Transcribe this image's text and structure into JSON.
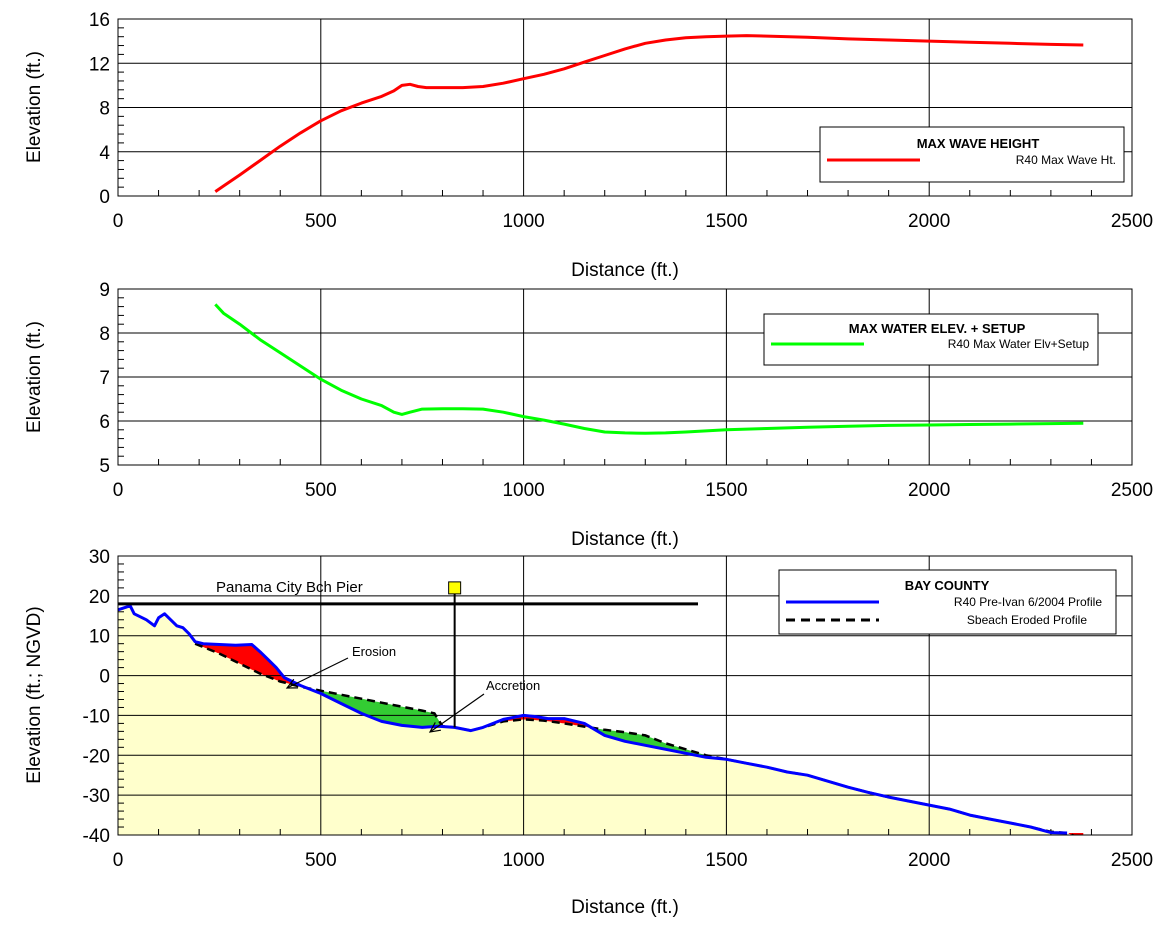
{
  "chart_data": [
    {
      "type": "line",
      "xlabel": "Distance (ft.)",
      "ylabel": "Elevation (ft.)",
      "xlim": [
        0,
        2500
      ],
      "ylim": [
        0,
        16
      ],
      "xticks": [
        "0",
        "500",
        "1000",
        "1500",
        "2000",
        "2500"
      ],
      "yticks": [
        "0",
        "4",
        "8",
        "12",
        "16"
      ],
      "grid": true,
      "legend": {
        "title": "MAX WAVE HEIGHT",
        "placement": "right"
      },
      "series": [
        {
          "name": "R40 Max Wave Ht.",
          "color": "#ff0000",
          "x": [
            240,
            260,
            300,
            350,
            400,
            450,
            500,
            550,
            600,
            650,
            680,
            700,
            720,
            740,
            760,
            800,
            850,
            900,
            950,
            1000,
            1050,
            1100,
            1150,
            1200,
            1250,
            1300,
            1350,
            1400,
            1450,
            1500,
            1550,
            1600,
            1700,
            1800,
            1900,
            2000,
            2100,
            2200,
            2300,
            2380
          ],
          "y": [
            0.4,
            0.9,
            1.9,
            3.2,
            4.5,
            5.7,
            6.8,
            7.7,
            8.4,
            9.0,
            9.5,
            10.0,
            10.1,
            9.9,
            9.8,
            9.8,
            9.8,
            9.9,
            10.2,
            10.6,
            11.0,
            11.5,
            12.1,
            12.7,
            13.3,
            13.8,
            14.1,
            14.3,
            14.4,
            14.45,
            14.5,
            14.45,
            14.35,
            14.2,
            14.1,
            14.0,
            13.9,
            13.8,
            13.7,
            13.65
          ]
        }
      ]
    },
    {
      "type": "line",
      "xlabel": "Distance (ft.)",
      "ylabel": "Elevation (ft.)",
      "xlim": [
        0,
        2500
      ],
      "ylim": [
        5,
        9
      ],
      "xticks": [
        "0",
        "500",
        "1000",
        "1500",
        "2000",
        "2500"
      ],
      "yticks": [
        "5",
        "6",
        "7",
        "8",
        "9"
      ],
      "grid": true,
      "legend": {
        "title": "MAX WATER ELEV. + SETUP",
        "placement": "top-right"
      },
      "series": [
        {
          "name": "R40 Max Water Elv+Setup",
          "color": "#00ff00",
          "x": [
            240,
            260,
            300,
            350,
            400,
            450,
            500,
            550,
            600,
            650,
            680,
            700,
            720,
            750,
            800,
            850,
            900,
            950,
            1000,
            1050,
            1100,
            1150,
            1200,
            1250,
            1300,
            1350,
            1400,
            1500,
            1600,
            1700,
            1800,
            1900,
            2000,
            2100,
            2200,
            2300,
            2380
          ],
          "y": [
            8.65,
            8.45,
            8.2,
            7.85,
            7.55,
            7.25,
            6.95,
            6.7,
            6.5,
            6.35,
            6.2,
            6.15,
            6.2,
            6.27,
            6.28,
            6.28,
            6.27,
            6.2,
            6.1,
            6.02,
            5.93,
            5.83,
            5.75,
            5.73,
            5.72,
            5.73,
            5.75,
            5.8,
            5.83,
            5.86,
            5.88,
            5.9,
            5.91,
            5.92,
            5.93,
            5.94,
            5.95
          ]
        }
      ]
    },
    {
      "type": "line",
      "xlabel": "Distance (ft.)",
      "ylabel": "Elevation (ft.; NGVD)",
      "xlim": [
        0,
        2500
      ],
      "ylim": [
        -40,
        30
      ],
      "xticks": [
        "0",
        "500",
        "1000",
        "1500",
        "2000",
        "2500"
      ],
      "yticks": [
        "-40",
        "-30",
        "-20",
        "-10",
        "0",
        "10",
        "20",
        "30"
      ],
      "grid": true,
      "legend": {
        "title": "BAY COUNTY",
        "placement": "top-right"
      },
      "series": [
        {
          "name": "R40 Pre-Ivan 6/2004 Profile",
          "color": "#0000ff",
          "x": [
            0,
            15,
            30,
            40,
            50,
            70,
            90,
            100,
            115,
            130,
            145,
            160,
            175,
            190,
            210,
            250,
            290,
            330,
            350,
            370,
            390,
            410,
            420,
            450,
            500,
            550,
            600,
            650,
            700,
            750,
            790,
            830,
            870,
            900,
            950,
            1000,
            1030,
            1060,
            1100,
            1150,
            1200,
            1250,
            1300,
            1350,
            1400,
            1450,
            1500,
            1550,
            1600,
            1650,
            1700,
            1750,
            1800,
            1850,
            1900,
            1950,
            2000,
            2050,
            2100,
            2150,
            2200,
            2250,
            2300,
            2340
          ],
          "y": [
            16.5,
            17,
            17.5,
            15.5,
            15,
            14,
            12.5,
            14.5,
            15.5,
            14,
            12.5,
            12,
            10.5,
            8.5,
            8,
            7.8,
            7.6,
            7.8,
            6,
            4,
            2,
            -0.5,
            -1,
            -2.5,
            -4.5,
            -7,
            -9.5,
            -11.5,
            -12.5,
            -13,
            -12.7,
            -13,
            -13.8,
            -13,
            -11,
            -10,
            -10.3,
            -10.8,
            -10.8,
            -12,
            -15,
            -16.5,
            -17.5,
            -18.5,
            -19.5,
            -20.5,
            -21,
            -22,
            -23,
            -24.2,
            -25,
            -26.5,
            -28,
            -29.3,
            -30.5,
            -31.5,
            -32.5,
            -33.5,
            -35,
            -36,
            -37,
            -38,
            -39.4,
            -39.5
          ]
        },
        {
          "name": "Sbeach Eroded Profile",
          "color": "#000000",
          "x": [
            190,
            250,
            300,
            350,
            400,
            420,
            450,
            500,
            550,
            600,
            650,
            700,
            750,
            780,
            800,
            830,
            870,
            900,
            950,
            1000,
            1050,
            1100,
            1150,
            1200,
            1250,
            1300,
            1350,
            1400,
            1450,
            1500,
            1550,
            1600,
            1650,
            1700,
            1750,
            1800,
            1850,
            1900,
            1950,
            2000,
            2050,
            2100,
            2150,
            2200,
            2250,
            2300,
            2340,
            2360,
            2380
          ],
          "y": [
            8,
            5.5,
            3,
            0.5,
            -1.5,
            -2,
            -2.8,
            -3.8,
            -4.8,
            -5.8,
            -6.8,
            -7.8,
            -8.8,
            -9.5,
            -12.7,
            -13,
            -13.8,
            -13,
            -11.5,
            -11,
            -11.3,
            -12,
            -12.8,
            -13.6,
            -14.2,
            -15,
            -17,
            -18.5,
            -20,
            -21,
            -22,
            -23,
            -24.2,
            -25,
            -26.5,
            -28,
            -29.3,
            -30.5,
            -31.5,
            -32.5,
            -33.5,
            -35,
            -36,
            -37,
            -38,
            -39.2,
            -39.5,
            -40.3,
            -41
          ]
        }
      ],
      "annotations": {
        "pier_label": "Panama City Bch Pier",
        "erosion_label": "Erosion",
        "accretion_label": "Accretion"
      },
      "pier": {
        "elevation": 18,
        "x_start": 0,
        "x_end": 1430,
        "marker_x": 830,
        "marker_y": 22
      },
      "erosion_color": "#ff0000",
      "accretion_color": "#33cc33",
      "sand_color": "#ffffcc"
    }
  ]
}
